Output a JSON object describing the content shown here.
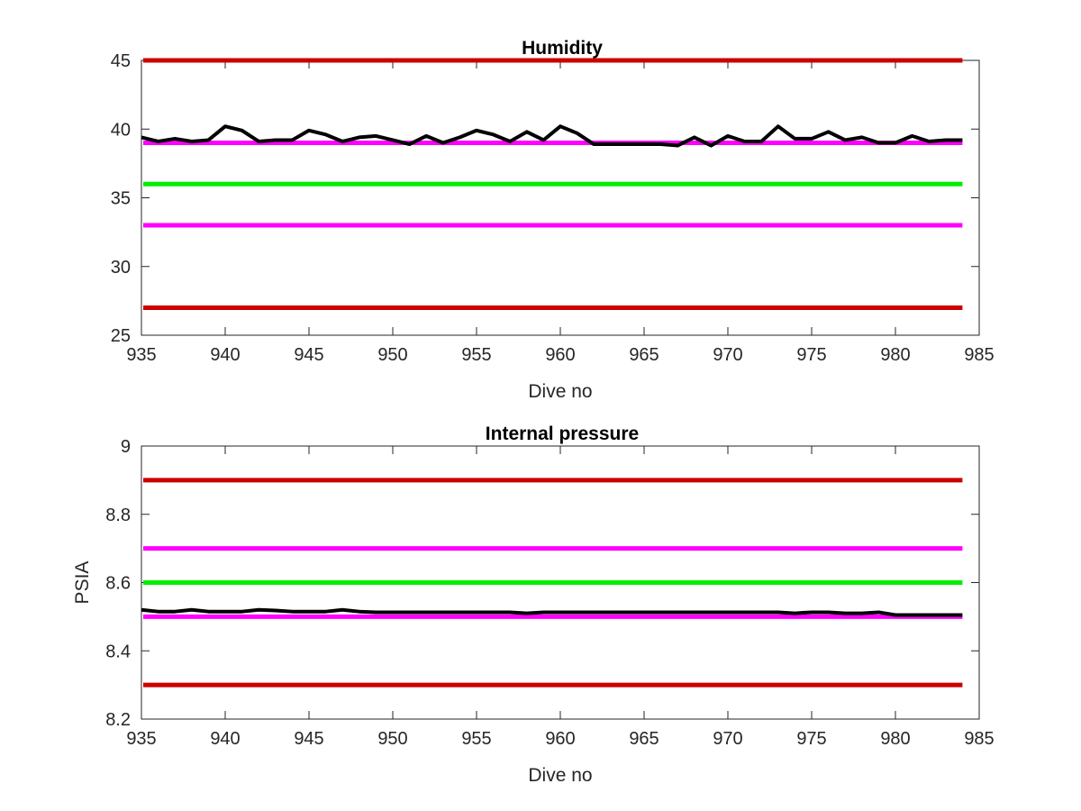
{
  "chart_data": [
    {
      "type": "line",
      "title": "Humidity",
      "xlabel": "Dive no",
      "ylabel": "",
      "xlim": [
        935,
        985
      ],
      "ylim": [
        25,
        45
      ],
      "xticks": [
        "935",
        "940",
        "945",
        "950",
        "955",
        "960",
        "965",
        "970",
        "975",
        "980",
        "985"
      ],
      "yticks": [
        "25",
        "30",
        "35",
        "40",
        "45"
      ],
      "grid": false,
      "reference_lines": [
        {
          "y": 45,
          "color": "#cc0000"
        },
        {
          "y": 39,
          "color": "#ff00ff"
        },
        {
          "y": 36,
          "color": "#00ee00"
        },
        {
          "y": 33,
          "color": "#ff00ff"
        },
        {
          "y": 27,
          "color": "#cc0000"
        }
      ],
      "series": [
        {
          "color": "#000000",
          "x": [
            935,
            936,
            937,
            938,
            939,
            940,
            941,
            942,
            943,
            944,
            945,
            946,
            947,
            948,
            949,
            950,
            951,
            952,
            953,
            954,
            955,
            956,
            957,
            958,
            959,
            960,
            961,
            962,
            963,
            964,
            965,
            966,
            967,
            968,
            969,
            970,
            971,
            972,
            973,
            974,
            975,
            976,
            977,
            978,
            979,
            980,
            981,
            982,
            983,
            984
          ],
          "values": [
            39.4,
            39.1,
            39.3,
            39.1,
            39.2,
            40.2,
            39.9,
            39.1,
            39.2,
            39.2,
            39.9,
            39.6,
            39.1,
            39.4,
            39.5,
            39.2,
            38.9,
            39.5,
            39.0,
            39.4,
            39.9,
            39.6,
            39.1,
            39.8,
            39.2,
            40.2,
            39.7,
            38.9,
            38.9,
            38.9,
            38.9,
            38.9,
            38.8,
            39.4,
            38.8,
            39.5,
            39.1,
            39.1,
            40.2,
            39.3,
            39.3,
            39.8,
            39.2,
            39.4,
            39.0,
            39.0,
            39.5,
            39.1,
            39.2,
            39.2
          ]
        }
      ]
    },
    {
      "type": "line",
      "title": "Internal pressure",
      "xlabel": "Dive no",
      "ylabel": "PSIA",
      "xlim": [
        935,
        985
      ],
      "ylim": [
        8.2,
        9.0
      ],
      "xticks": [
        "935",
        "940",
        "945",
        "950",
        "955",
        "960",
        "965",
        "970",
        "975",
        "980",
        "985"
      ],
      "yticks": [
        "8.2",
        "8.4",
        "8.6",
        "8.8",
        "9"
      ],
      "grid": false,
      "reference_lines": [
        {
          "y": 8.9,
          "color": "#cc0000"
        },
        {
          "y": 8.7,
          "color": "#ff00ff"
        },
        {
          "y": 8.6,
          "color": "#00ee00"
        },
        {
          "y": 8.5,
          "color": "#ff00ff"
        },
        {
          "y": 8.3,
          "color": "#cc0000"
        }
      ],
      "series": [
        {
          "color": "#000000",
          "x": [
            935,
            936,
            937,
            938,
            939,
            940,
            941,
            942,
            943,
            944,
            945,
            946,
            947,
            948,
            949,
            950,
            951,
            952,
            953,
            954,
            955,
            956,
            957,
            958,
            959,
            960,
            961,
            962,
            963,
            964,
            965,
            966,
            967,
            968,
            969,
            970,
            971,
            972,
            973,
            974,
            975,
            976,
            977,
            978,
            979,
            980,
            981,
            982,
            983,
            984
          ],
          "values": [
            8.52,
            8.515,
            8.515,
            8.52,
            8.515,
            8.515,
            8.515,
            8.52,
            8.518,
            8.515,
            8.515,
            8.515,
            8.52,
            8.515,
            8.513,
            8.513,
            8.513,
            8.513,
            8.513,
            8.513,
            8.513,
            8.513,
            8.513,
            8.51,
            8.513,
            8.513,
            8.513,
            8.513,
            8.513,
            8.513,
            8.513,
            8.513,
            8.513,
            8.513,
            8.513,
            8.513,
            8.513,
            8.513,
            8.513,
            8.51,
            8.513,
            8.513,
            8.51,
            8.51,
            8.513,
            8.505,
            8.505,
            8.505,
            8.505,
            8.505
          ]
        }
      ]
    }
  ]
}
